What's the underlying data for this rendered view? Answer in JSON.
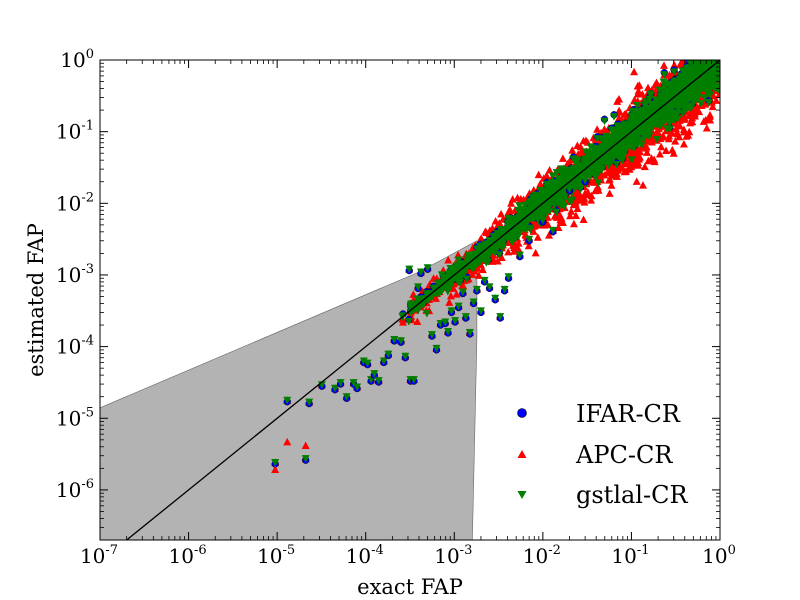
{
  "chart_data": {
    "type": "scatter",
    "xlabel": "exact FAP",
    "ylabel": "estimated FAP",
    "xscale": "log",
    "yscale": "log",
    "xlim": [
      1e-07,
      1
    ],
    "ylim": [
      2e-07,
      1
    ],
    "x_tick_labels": [
      {
        "value": 1e-07,
        "base": "10",
        "exp": "-7"
      },
      {
        "value": 1e-06,
        "base": "10",
        "exp": "-6"
      },
      {
        "value": 1e-05,
        "base": "10",
        "exp": "-5"
      },
      {
        "value": 0.0001,
        "base": "10",
        "exp": "-4"
      },
      {
        "value": 0.001,
        "base": "10",
        "exp": "-3"
      },
      {
        "value": 0.01,
        "base": "10",
        "exp": "-2"
      },
      {
        "value": 0.1,
        "base": "10",
        "exp": "-1"
      },
      {
        "value": 1,
        "base": "10",
        "exp": "0"
      }
    ],
    "y_tick_labels": [
      {
        "value": 1e-06,
        "base": "10",
        "exp": "-6"
      },
      {
        "value": 1e-05,
        "base": "10",
        "exp": "-5"
      },
      {
        "value": 0.0001,
        "base": "10",
        "exp": "-4"
      },
      {
        "value": 0.001,
        "base": "10",
        "exp": "-3"
      },
      {
        "value": 0.01,
        "base": "10",
        "exp": "-2"
      },
      {
        "value": 0.1,
        "base": "10",
        "exp": "-1"
      },
      {
        "value": 1,
        "base": "10",
        "exp": "0"
      }
    ],
    "reference_line": {
      "x": [
        1e-07,
        1
      ],
      "y": [
        1e-07,
        1
      ],
      "color": "#000000"
    },
    "confidence_region": {
      "color": "#999999",
      "polygon": [
        [
          1e-07,
          1.4e-05
        ],
        [
          0.0004,
          0.0011
        ],
        [
          0.0018,
          0.003
        ],
        [
          0.0018,
          0.00013
        ],
        [
          0.0016,
          2e-07
        ],
        [
          1e-07,
          2e-07
        ]
      ]
    },
    "legend": {
      "position": "lower-right"
    },
    "series": [
      {
        "name": "IFAR-CR",
        "marker": "circle",
        "color": "#0000ff",
        "points": []
      },
      {
        "name": "APC-CR",
        "marker": "triangle-up",
        "color": "#ff0000",
        "points": []
      },
      {
        "name": "gstlal-CR",
        "marker": "triangle-down",
        "color": "#007f00",
        "points": []
      }
    ],
    "manual_points": [
      [
        9.5e-06,
        2.3e-06
      ],
      [
        1.3e-05,
        1.7e-05
      ],
      [
        2.1e-05,
        2.6e-06
      ],
      [
        2.3e-05,
        1.6e-05
      ],
      [
        3.2e-05,
        2.8e-05
      ],
      [
        4.5e-05,
        2.5e-05
      ],
      [
        5.2e-05,
        3e-05
      ],
      [
        6.1e-05,
        1.9e-05
      ],
      [
        7.3e-05,
        3e-05
      ],
      [
        8e-05,
        2.6e-05
      ],
      [
        9.5e-05,
        6e-05
      ],
      [
        0.000105,
        5.6e-05
      ],
      [
        0.000115,
        3.3e-05
      ],
      [
        0.000125,
        4e-05
      ],
      [
        0.00014,
        3.2e-05
      ],
      [
        0.00016,
        6e-05
      ],
      [
        0.00018,
        7.5e-05
      ],
      [
        0.00021,
        0.00012
      ],
      [
        0.00025,
        0.000115
      ],
      [
        0.00028,
        7e-05
      ],
      [
        0.00032,
        3.3e-05
      ],
      [
        0.00035,
        3.3e-05
      ],
      [
        0.00039,
        0.00065
      ],
      [
        0.00042,
        0.00105
      ],
      [
        0.00031,
        0.00115
      ],
      [
        0.0005,
        0.0012
      ],
      [
        0.00056,
        0.00014
      ],
      [
        0.00063,
        9e-05
      ],
      [
        0.0007,
        0.0002
      ],
      [
        0.00079,
        0.00021
      ],
      [
        0.00085,
        0.000155
      ],
      [
        0.00093,
        0.0003
      ],
      [
        0.00102,
        0.00022
      ],
      [
        0.00112,
        0.00035
      ],
      [
        0.00125,
        0.00055
      ],
      [
        0.00135,
        0.00025
      ],
      [
        0.0015,
        0.00015
      ],
      [
        0.00165,
        0.0004
      ],
      [
        0.0018,
        0.0006
      ],
      [
        0.002,
        0.0003
      ],
      [
        0.0022,
        0.0008
      ],
      [
        0.0025,
        0.00065
      ],
      [
        0.0029,
        0.00045
      ],
      [
        0.0033,
        0.00025
      ],
      [
        0.0037,
        0.0006
      ],
      [
        0.0041,
        0.0009
      ],
      [
        0.0055,
        0.0018
      ],
      [
        0.007,
        0.003
      ],
      [
        0.01,
        0.0055
      ],
      [
        0.013,
        0.004
      ],
      [
        0.02,
        0.015
      ],
      [
        0.03,
        0.02
      ]
    ]
  },
  "legend_labels": {
    "ifar": "IFAR-CR",
    "apc": "APC-CR",
    "gstlal": "gstlal-CR"
  },
  "labels": {
    "xlabel": "exact FAP",
    "ylabel": "estimated FAP"
  }
}
